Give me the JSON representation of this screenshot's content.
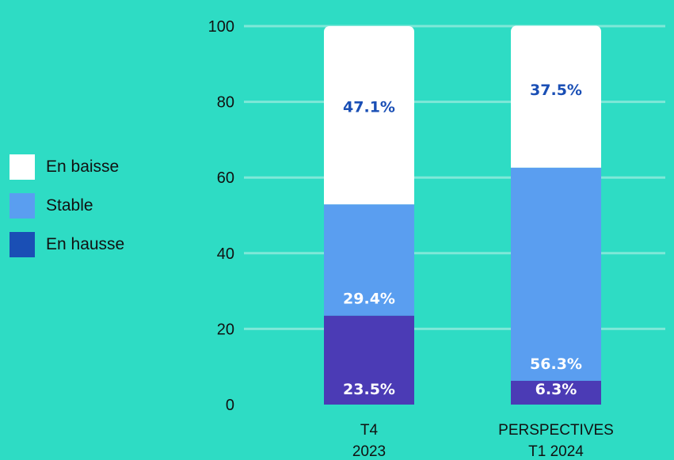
{
  "chart_data": {
    "type": "bar",
    "stacked": true,
    "categories": [
      "T4\n2023",
      "PERSPECTIVES\nT1 2024"
    ],
    "series": [
      {
        "name": "En hausse",
        "values": [
          23.5,
          6.3
        ],
        "color": "#4b3bb5",
        "labels": [
          "23.5%",
          "6.3%"
        ],
        "label_color": "#ffffff"
      },
      {
        "name": "Stable",
        "values": [
          29.4,
          56.3
        ],
        "color": "#5a9ef0",
        "labels": [
          "29.4%",
          "56.3%"
        ],
        "label_color": "#ffffff"
      },
      {
        "name": "En baisse",
        "values": [
          47.1,
          37.5
        ],
        "color": "#ffffff",
        "labels": [
          "47.1%",
          "37.5%"
        ],
        "label_color": "#1a4fb5"
      }
    ],
    "ylim": [
      0,
      100
    ],
    "yticks": [
      0,
      20,
      40,
      60,
      80,
      100
    ],
    "grid": true,
    "legend_position": "left",
    "legend_order": [
      "En baisse",
      "Stable",
      "En hausse"
    ],
    "legend_colors": {
      "En baisse": "#ffffff",
      "Stable": "#5a9ef0",
      "En hausse": "#1a4fb5"
    },
    "gridline_color": "#7fe8d8"
  }
}
